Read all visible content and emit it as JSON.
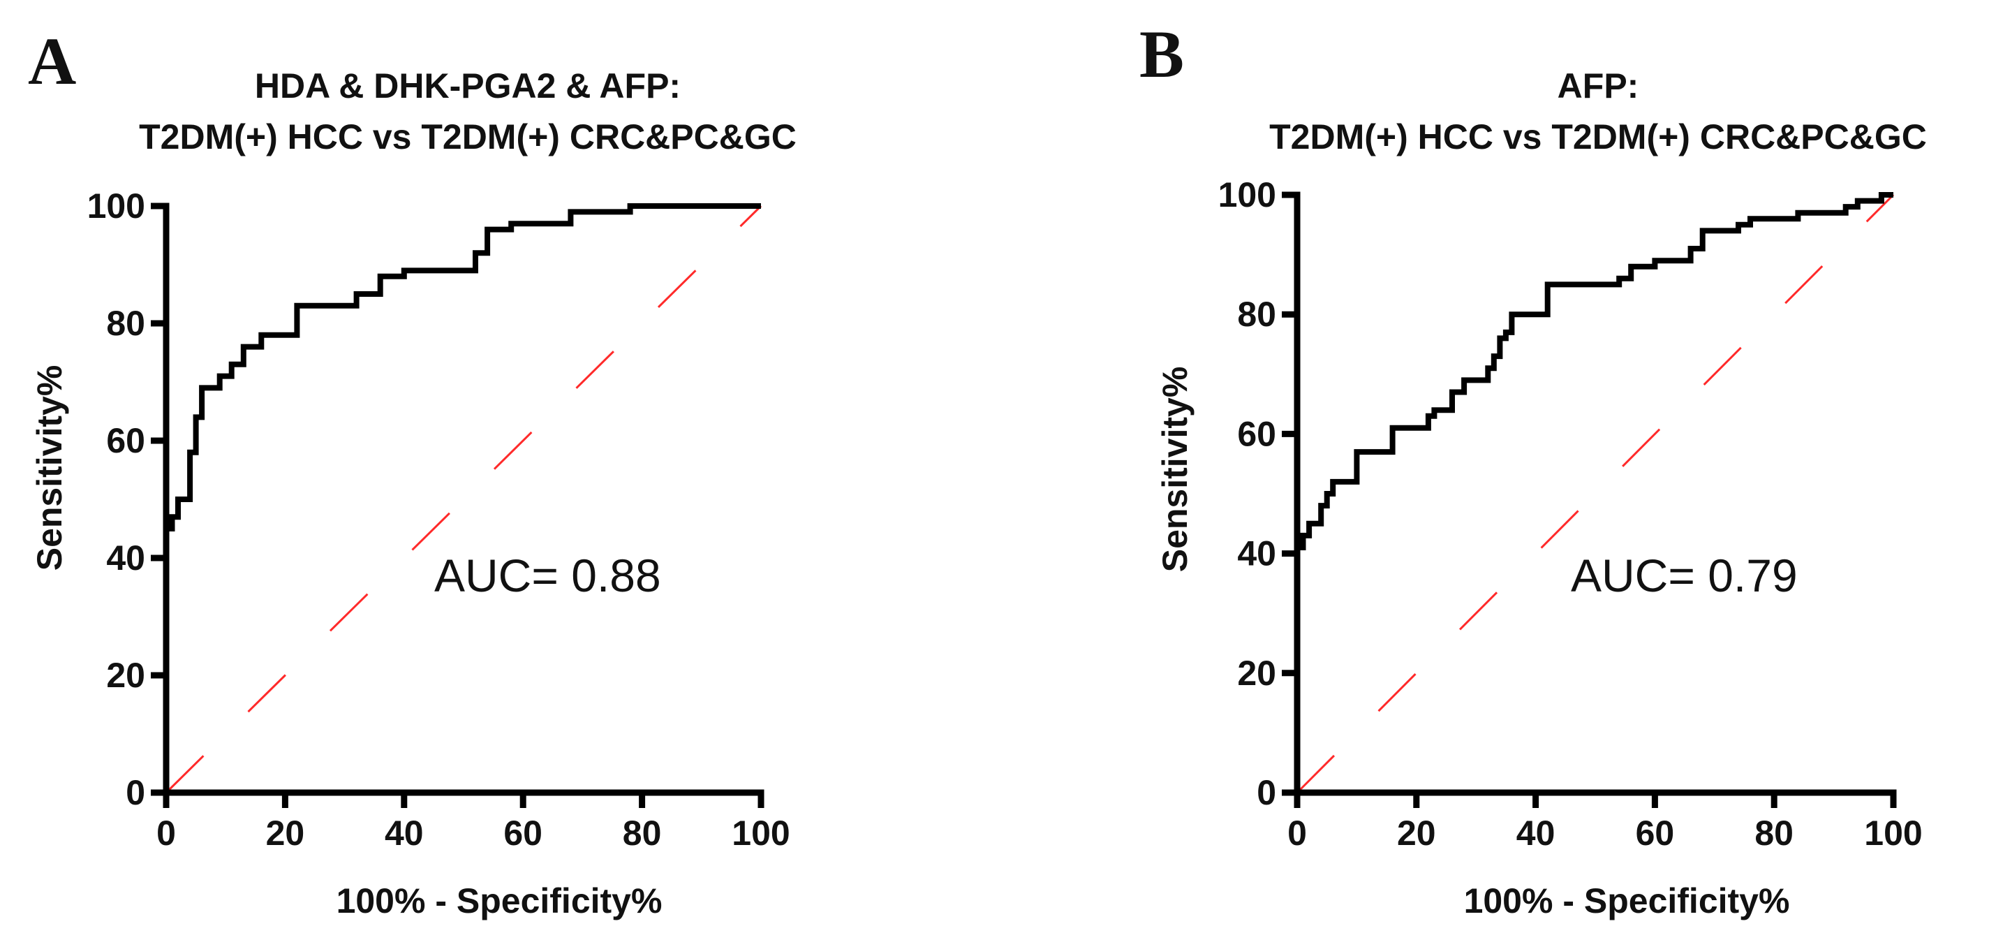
{
  "chart_data": [
    {
      "type": "line",
      "panel_label": "A",
      "title_lines": [
        "HDA & DHK-PGA2 & AFP:",
        "T2DM(+) HCC vs T2DM(+) CRC&PC&GC"
      ],
      "xlabel": "100% - Specificity%",
      "ylabel": "Sensitivity%",
      "xlim": [
        0,
        100
      ],
      "ylim": [
        0,
        100
      ],
      "xticks": [
        "0",
        "20",
        "40",
        "60",
        "80",
        "100"
      ],
      "yticks": [
        "0",
        "20",
        "40",
        "60",
        "80",
        "100"
      ],
      "annotation": "AUC= 0.88",
      "series": [
        {
          "name": "ROC",
          "color": "#000000",
          "points": [
            [
              0,
              44
            ],
            [
              0,
              45
            ],
            [
              1,
              45
            ],
            [
              1,
              47
            ],
            [
              2,
              47
            ],
            [
              2,
              50
            ],
            [
              4,
              50
            ],
            [
              4,
              58
            ],
            [
              5,
              58
            ],
            [
              5,
              64
            ],
            [
              6,
              64
            ],
            [
              6,
              69
            ],
            [
              9,
              69
            ],
            [
              9,
              71
            ],
            [
              11,
              71
            ],
            [
              11,
              73
            ],
            [
              13,
              73
            ],
            [
              13,
              76
            ],
            [
              16,
              76
            ],
            [
              16,
              78
            ],
            [
              22,
              78
            ],
            [
              22,
              83
            ],
            [
              32,
              83
            ],
            [
              32,
              85
            ],
            [
              36,
              85
            ],
            [
              36,
              88
            ],
            [
              40,
              88
            ],
            [
              40,
              89
            ],
            [
              52,
              89
            ],
            [
              52,
              92
            ],
            [
              54,
              92
            ],
            [
              54,
              96
            ],
            [
              58,
              96
            ],
            [
              58,
              97
            ],
            [
              68,
              97
            ],
            [
              68,
              99
            ],
            [
              78,
              99
            ],
            [
              78,
              100
            ],
            [
              100,
              100
            ]
          ]
        },
        {
          "name": "Reference",
          "color": "#ff2a2a",
          "points": [
            [
              0,
              0
            ],
            [
              100,
              100
            ]
          ]
        }
      ]
    },
    {
      "type": "line",
      "panel_label": "B",
      "title_lines": [
        "AFP:",
        "T2DM(+) HCC vs T2DM(+) CRC&PC&GC"
      ],
      "xlabel": "100% - Specificity%",
      "ylabel": "Sensitivity%",
      "xlim": [
        0,
        100
      ],
      "ylim": [
        0,
        100
      ],
      "xticks": [
        "0",
        "20",
        "40",
        "60",
        "80",
        "100"
      ],
      "yticks": [
        "0",
        "20",
        "40",
        "60",
        "80",
        "100"
      ],
      "annotation": "AUC= 0.79",
      "series": [
        {
          "name": "ROC",
          "color": "#000000",
          "points": [
            [
              0,
              41
            ],
            [
              1,
              41
            ],
            [
              1,
              43
            ],
            [
              2,
              43
            ],
            [
              2,
              45
            ],
            [
              4,
              45
            ],
            [
              4,
              48
            ],
            [
              5,
              48
            ],
            [
              5,
              50
            ],
            [
              6,
              50
            ],
            [
              6,
              52
            ],
            [
              10,
              52
            ],
            [
              10,
              57
            ],
            [
              16,
              57
            ],
            [
              16,
              61
            ],
            [
              22,
              61
            ],
            [
              22,
              63
            ],
            [
              23,
              63
            ],
            [
              23,
              64
            ],
            [
              26,
              64
            ],
            [
              26,
              67
            ],
            [
              28,
              67
            ],
            [
              28,
              69
            ],
            [
              32,
              69
            ],
            [
              32,
              71
            ],
            [
              33,
              71
            ],
            [
              33,
              73
            ],
            [
              34,
              73
            ],
            [
              34,
              76
            ],
            [
              35,
              76
            ],
            [
              35,
              77
            ],
            [
              36,
              77
            ],
            [
              36,
              80
            ],
            [
              42,
              80
            ],
            [
              42,
              85
            ],
            [
              54,
              85
            ],
            [
              54,
              86
            ],
            [
              56,
              86
            ],
            [
              56,
              88
            ],
            [
              60,
              88
            ],
            [
              60,
              89
            ],
            [
              66,
              89
            ],
            [
              66,
              91
            ],
            [
              68,
              91
            ],
            [
              68,
              94
            ],
            [
              74,
              94
            ],
            [
              74,
              95
            ],
            [
              76,
              95
            ],
            [
              76,
              96
            ],
            [
              84,
              96
            ],
            [
              84,
              97
            ],
            [
              92,
              97
            ],
            [
              92,
              98
            ],
            [
              94,
              98
            ],
            [
              94,
              99
            ],
            [
              98,
              99
            ],
            [
              98,
              100
            ],
            [
              100,
              100
            ]
          ]
        },
        {
          "name": "Reference",
          "color": "#ff2a2a",
          "points": [
            [
              0,
              0
            ],
            [
              100,
              100
            ]
          ]
        }
      ]
    }
  ]
}
